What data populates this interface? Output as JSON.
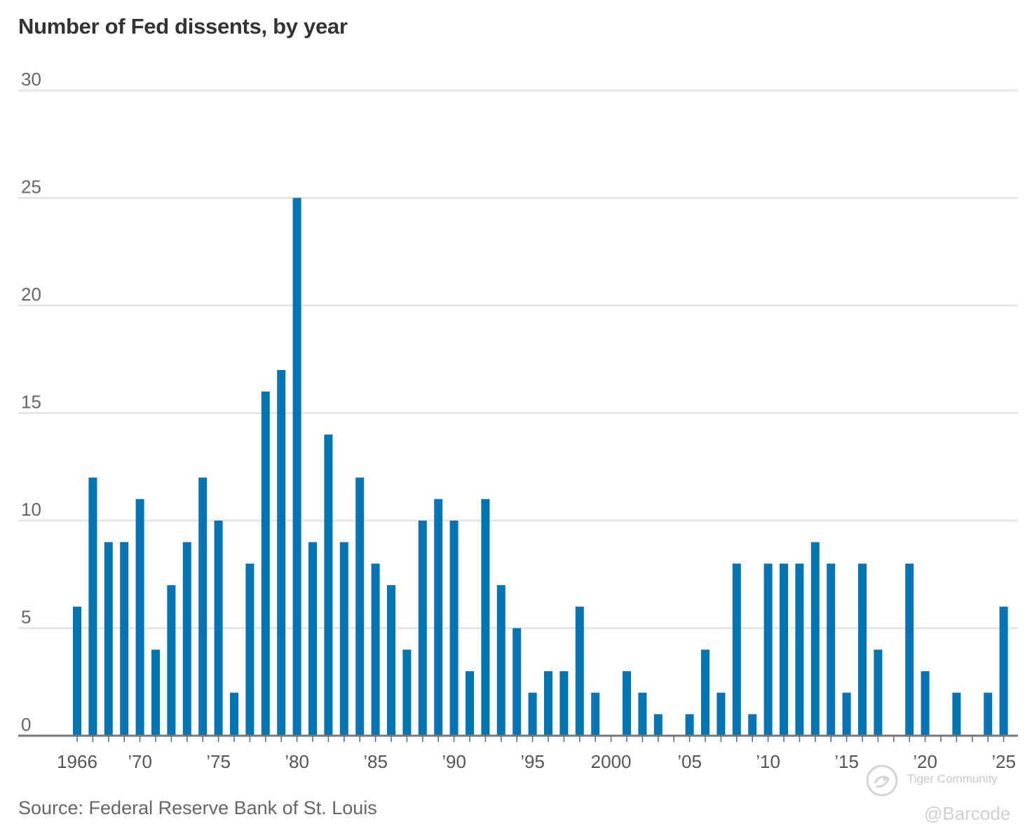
{
  "chart_data": {
    "type": "bar",
    "title": "Number of Fed dissents, by year",
    "source": "Source: Federal Reserve Bank of St. Louis",
    "years": [
      1966,
      1967,
      1968,
      1969,
      1970,
      1971,
      1972,
      1973,
      1974,
      1975,
      1976,
      1977,
      1978,
      1979,
      1980,
      1981,
      1982,
      1983,
      1984,
      1985,
      1986,
      1987,
      1988,
      1989,
      1990,
      1991,
      1992,
      1993,
      1994,
      1995,
      1996,
      1997,
      1998,
      1999,
      2000,
      2001,
      2002,
      2003,
      2004,
      2005,
      2006,
      2007,
      2008,
      2009,
      2010,
      2011,
      2012,
      2013,
      2014,
      2015,
      2016,
      2017,
      2018,
      2019,
      2020,
      2021,
      2022,
      2023,
      2024,
      2025
    ],
    "values": [
      6,
      12,
      9,
      9,
      11,
      4,
      7,
      9,
      12,
      10,
      2,
      8,
      16,
      17,
      25,
      9,
      14,
      9,
      12,
      8,
      7,
      4,
      10,
      11,
      10,
      3,
      11,
      7,
      5,
      2,
      3,
      3,
      6,
      2,
      0,
      3,
      2,
      1,
      0,
      1,
      4,
      2,
      8,
      1,
      8,
      8,
      8,
      9,
      8,
      2,
      8,
      4,
      0,
      8,
      3,
      0,
      2,
      0,
      2,
      6
    ],
    "x_tick_labels": [
      {
        "year": 1966,
        "label": "1966"
      },
      {
        "year": 1970,
        "label": "’70"
      },
      {
        "year": 1975,
        "label": "’75"
      },
      {
        "year": 1980,
        "label": "’80"
      },
      {
        "year": 1985,
        "label": "’85"
      },
      {
        "year": 1990,
        "label": "’90"
      },
      {
        "year": 1995,
        "label": "’95"
      },
      {
        "year": 2000,
        "label": "2000"
      },
      {
        "year": 2005,
        "label": "’05"
      },
      {
        "year": 2010,
        "label": "’10"
      },
      {
        "year": 2015,
        "label": "’15"
      },
      {
        "year": 2020,
        "label": "’20"
      },
      {
        "year": 2025,
        "label": "’25"
      }
    ],
    "y_ticks": [
      0,
      5,
      10,
      15,
      20,
      25,
      30
    ],
    "ylim": [
      0,
      30
    ],
    "xlabel": "",
    "ylabel": "",
    "grid": true,
    "bar_color": "#0274b3",
    "grid_color": "#e6e6e6",
    "axis_color": "#777777"
  },
  "watermark": {
    "brand": "Tiger Community",
    "handle": "@Barcode"
  }
}
